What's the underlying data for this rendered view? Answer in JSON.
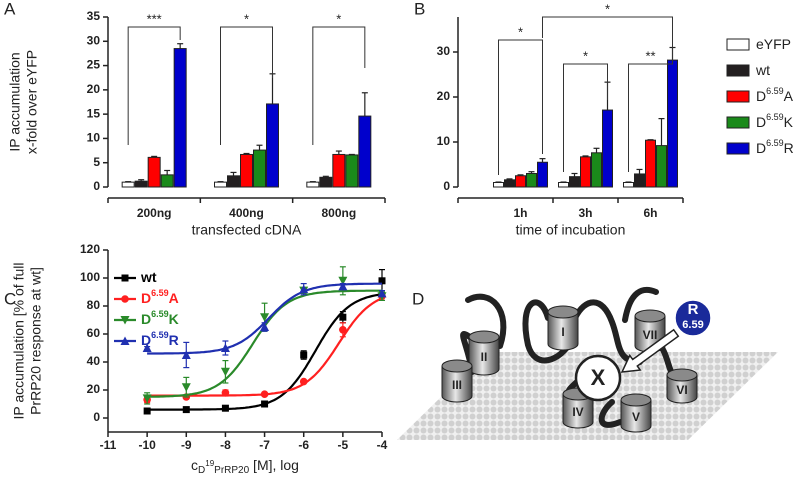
{
  "chart_data": [
    {
      "type": "bar",
      "label": "A",
      "ylabel": [
        "IP accumulation",
        "x-fold over eYFP"
      ],
      "xlabel": "transfected cDNA",
      "categories": [
        "200ng",
        "400ng",
        "800ng"
      ],
      "series": [
        {
          "color": "#ffffff",
          "values": [
            1,
            1,
            1
          ],
          "errors": [
            0.1,
            0.1,
            0.1
          ]
        },
        {
          "color": "#231f20",
          "values": [
            1.2,
            2.3,
            2.0
          ],
          "errors": [
            0.3,
            0.7,
            0.2
          ]
        },
        {
          "color": "#ff0000",
          "values": [
            6.1,
            6.7,
            6.7
          ],
          "errors": [
            0.2,
            0.2,
            0.7
          ]
        },
        {
          "color": "#1a8a1a",
          "values": [
            2.5,
            7.6,
            6.6
          ],
          "errors": [
            0.9,
            1.0,
            0.1
          ]
        },
        {
          "color": "#0000cc",
          "values": [
            28.5,
            17.1,
            14.6
          ],
          "errors": [
            1.0,
            6.2,
            4.8
          ]
        }
      ],
      "ylim": [
        0,
        35
      ],
      "yticks": [
        0,
        5,
        10,
        15,
        20,
        25,
        30,
        35
      ],
      "annotations": [
        "***",
        "*",
        "*"
      ]
    },
    {
      "type": "bar",
      "label": "B",
      "xlabel": "time of incubation",
      "categories": [
        "1h",
        "3h",
        "6h"
      ],
      "series": [
        {
          "name": [
            "eYFP"
          ],
          "color": "#ffffff",
          "values": [
            1,
            1,
            1
          ],
          "errors": [
            0.1,
            0.1,
            0.1
          ]
        },
        {
          "name": [
            "wt"
          ],
          "color": "#231f20",
          "values": [
            1.6,
            2.3,
            2.9
          ],
          "errors": [
            0.2,
            0.7,
            1.0
          ]
        },
        {
          "name": [
            "D",
            "6.59",
            "A"
          ],
          "color": "#ff0000",
          "values": [
            2.5,
            6.7,
            10.4
          ],
          "errors": [
            0.2,
            0.2,
            0.1
          ]
        },
        {
          "name": [
            "D",
            "6.59",
            "K"
          ],
          "color": "#1a8a1a",
          "values": [
            3.0,
            7.6,
            9.2
          ],
          "errors": [
            0.4,
            1.0,
            6.0
          ]
        },
        {
          "name": [
            "D",
            "6.59",
            "R"
          ],
          "color": "#0000cc",
          "values": [
            5.5,
            17.1,
            28.2
          ],
          "errors": [
            0.8,
            6.2,
            2.8
          ]
        }
      ],
      "ylim": [
        0,
        35
      ],
      "yticks": [
        0,
        10,
        20,
        30
      ],
      "legend": "right",
      "annotations": [
        "*",
        "*",
        "**",
        "*"
      ]
    },
    {
      "type": "scatter",
      "label": "C",
      "ylabel": [
        "IP accumulation [% of full",
        "PrRP20 response at wt]"
      ],
      "xlabel": [
        "c",
        "D",
        "19",
        "PrRP20",
        " [M], log"
      ],
      "x": [
        -10,
        -9,
        -8,
        -7,
        -6,
        -5,
        -4
      ],
      "series": [
        {
          "name": [
            "wt"
          ],
          "color": "#000000",
          "marker": "square",
          "values": [
            5,
            6,
            7,
            10,
            45,
            72,
            98
          ],
          "errors": [
            2,
            1,
            1,
            1,
            3,
            4,
            8
          ],
          "fit": {
            "bottom": 6,
            "top": 90,
            "logec50": -5.7
          }
        },
        {
          "name": [
            "D",
            "6.59",
            "A"
          ],
          "color": "#ff2020",
          "marker": "circle",
          "values": [
            13,
            15,
            18,
            17,
            26,
            63,
            87
          ],
          "errors": [
            2,
            1,
            2,
            1,
            1,
            5,
            3
          ],
          "fit": {
            "bottom": 16,
            "top": 91,
            "logec50": -5.1
          }
        },
        {
          "name": [
            "D",
            "6.59",
            "K"
          ],
          "color": "#2a8a2a",
          "marker": "triangle-down",
          "values": [
            14,
            22,
            33,
            72,
            91,
            98,
            87
          ],
          "errors": [
            4,
            7,
            8,
            10,
            2,
            10,
            3
          ],
          "fit": {
            "bottom": 15,
            "top": 91,
            "logec50": -7.3
          }
        },
        {
          "name": [
            "D",
            "6.59",
            "R"
          ],
          "color": "#2030b0",
          "marker": "triangle-up",
          "values": [
            50,
            45,
            50,
            65,
            92,
            94,
            89
          ],
          "errors": [
            1,
            9,
            5,
            3,
            4,
            2,
            2
          ],
          "fit": {
            "bottom": 46,
            "top": 96,
            "logec50": -6.9
          }
        }
      ],
      "xlim": [
        -11,
        -4
      ],
      "xticks": [
        -11,
        -10,
        -9,
        -8,
        -7,
        -6,
        -5,
        -4
      ],
      "ylim": [
        -10,
        120
      ],
      "yticks": [
        0,
        20,
        40,
        60,
        80,
        100,
        120
      ],
      "legend": "upper left"
    }
  ],
  "diagram": {
    "label": "D",
    "helices": [
      "I",
      "II",
      "III",
      "IV",
      "V",
      "VI",
      "VII"
    ],
    "ligand": "X",
    "residue": "R",
    "position": "6.59"
  }
}
